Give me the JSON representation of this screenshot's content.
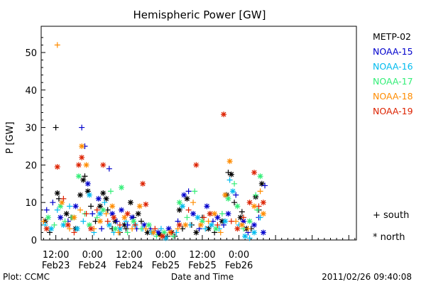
{
  "chart_data": {
    "type": "scatter",
    "title": "Hemispheric Power [GW]",
    "xlabel": "Date and Time",
    "ylabel": "P [GW]",
    "x_units": "hours since 2011-02-23 00:00",
    "xlim": [
      7.2,
      110.5
    ],
    "ylim": [
      0,
      57
    ],
    "yticks": [
      0,
      10,
      20,
      30,
      40,
      50
    ],
    "xticks": [
      {
        "x": 12,
        "time": "12:00",
        "date": "Feb23"
      },
      {
        "x": 24,
        "time": "0:00",
        "date": "Feb24"
      },
      {
        "x": 36,
        "time": "12:00",
        "date": "Feb24"
      },
      {
        "x": 48,
        "time": "0:00",
        "date": "Feb25"
      },
      {
        "x": 60,
        "time": "12:00",
        "date": "Feb25"
      },
      {
        "x": 72,
        "time": "0:00",
        "date": "Feb26"
      }
    ],
    "marker_legend": [
      {
        "symbol": "+",
        "label": "south"
      },
      {
        "symbol": "*",
        "label": "north"
      }
    ],
    "series": [
      {
        "name": "METP-02",
        "color": "#000000",
        "points": [
          [
            12.0,
            30,
            "+"
          ],
          [
            12.5,
            12.5,
            "*"
          ],
          [
            13.0,
            11,
            "+"
          ],
          [
            15.5,
            7,
            "*"
          ],
          [
            17.0,
            6,
            "+"
          ],
          [
            20.0,
            12,
            "*"
          ],
          [
            21.0,
            16,
            "*"
          ],
          [
            21.5,
            17,
            "+"
          ],
          [
            22.5,
            13,
            "*"
          ],
          [
            23.5,
            9,
            "+"
          ],
          [
            25.0,
            5,
            "+"
          ],
          [
            26.5,
            9,
            "*"
          ],
          [
            27.5,
            12.5,
            "*"
          ],
          [
            28.5,
            11,
            "*"
          ],
          [
            29.0,
            8,
            "+"
          ],
          [
            30.5,
            3,
            "+"
          ],
          [
            31.5,
            5,
            "*"
          ],
          [
            33.0,
            2,
            "+"
          ],
          [
            34.5,
            4,
            "*"
          ],
          [
            35.0,
            3,
            "+"
          ],
          [
            36.5,
            10,
            "*"
          ],
          [
            37.5,
            6,
            "+"
          ],
          [
            39.0,
            7,
            "*"
          ],
          [
            40.0,
            5,
            "+"
          ],
          [
            42.0,
            2,
            "*"
          ],
          [
            44.0,
            2,
            "+"
          ],
          [
            46.0,
            1.5,
            "*"
          ],
          [
            48.5,
            1,
            "+"
          ],
          [
            50.0,
            2,
            "*"
          ],
          [
            51.0,
            1,
            "+"
          ],
          [
            52.5,
            8,
            "*"
          ],
          [
            53.5,
            3,
            "+"
          ],
          [
            55.0,
            11,
            "*"
          ],
          [
            56.5,
            4,
            "+"
          ],
          [
            58.0,
            2,
            "*"
          ],
          [
            60.0,
            6,
            "+"
          ],
          [
            62.0,
            3,
            "*"
          ],
          [
            64.0,
            2,
            "+"
          ],
          [
            66.5,
            5,
            "*"
          ],
          [
            68.0,
            12,
            "*"
          ],
          [
            68.5,
            18,
            "+"
          ],
          [
            69.5,
            17.5,
            "*"
          ],
          [
            70.5,
            10,
            "+"
          ],
          [
            72.5,
            6,
            "*"
          ],
          [
            73.0,
            7.5,
            "+"
          ],
          [
            74.5,
            3,
            "*"
          ],
          [
            76.0,
            3,
            "+"
          ],
          [
            77.5,
            11.5,
            "*"
          ],
          [
            78.5,
            8,
            "+"
          ],
          [
            79.5,
            15,
            "*"
          ],
          [
            8.5,
            5,
            "*"
          ],
          [
            10.0,
            2,
            "+"
          ],
          [
            18.5,
            3,
            "*"
          ]
        ]
      },
      {
        "name": "NOAA-15",
        "color": "#0000cc",
        "points": [
          [
            9.0,
            8,
            "+"
          ],
          [
            11.0,
            10,
            "+"
          ],
          [
            13.5,
            6,
            "*"
          ],
          [
            16.0,
            5,
            "+"
          ],
          [
            18.5,
            9,
            "*"
          ],
          [
            20.5,
            30,
            "+"
          ],
          [
            21.5,
            25,
            "+"
          ],
          [
            22.5,
            15,
            "*"
          ],
          [
            24.0,
            7,
            "+"
          ],
          [
            26.0,
            11,
            "*"
          ],
          [
            27.0,
            3,
            "+"
          ],
          [
            29.5,
            19,
            "+"
          ],
          [
            30.5,
            7,
            "*"
          ],
          [
            32.0,
            5,
            "+"
          ],
          [
            33.5,
            8,
            "*"
          ],
          [
            35.5,
            4,
            "+"
          ],
          [
            37.0,
            6,
            "*"
          ],
          [
            38.5,
            3,
            "+"
          ],
          [
            41.0,
            4,
            "*"
          ],
          [
            43.0,
            3,
            "+"
          ],
          [
            45.5,
            2,
            "*"
          ],
          [
            47.0,
            1,
            "+"
          ],
          [
            49.0,
            3,
            "*"
          ],
          [
            52.0,
            5,
            "+"
          ],
          [
            54.0,
            12,
            "*"
          ],
          [
            55.5,
            13,
            "+"
          ],
          [
            57.0,
            7,
            "*"
          ],
          [
            59.0,
            3,
            "+"
          ],
          [
            61.5,
            9,
            "*"
          ],
          [
            63.5,
            5,
            "+"
          ],
          [
            65.0,
            6,
            "*"
          ],
          [
            67.0,
            4,
            "+"
          ],
          [
            68.5,
            7,
            "*"
          ],
          [
            71.0,
            12,
            "+"
          ],
          [
            73.5,
            5,
            "*"
          ],
          [
            75.0,
            2,
            "+"
          ],
          [
            77.0,
            4,
            "*"
          ],
          [
            78.5,
            6,
            "+"
          ],
          [
            80.5,
            14.5,
            "+"
          ],
          [
            80.0,
            2,
            "*"
          ]
        ]
      },
      {
        "name": "NOAA-16",
        "color": "#00bbee",
        "points": [
          [
            8.5,
            4,
            "+"
          ],
          [
            10.5,
            3,
            "*"
          ],
          [
            12.5,
            8,
            "+"
          ],
          [
            14.5,
            4,
            "*"
          ],
          [
            16.5,
            9,
            "+"
          ],
          [
            19.0,
            3,
            "*"
          ],
          [
            21.0,
            5,
            "+"
          ],
          [
            23.0,
            12,
            "*"
          ],
          [
            24.5,
            2,
            "+"
          ],
          [
            26.5,
            7,
            "*"
          ],
          [
            28.0,
            10,
            "+"
          ],
          [
            29.5,
            4,
            "*"
          ],
          [
            31.0,
            2,
            "+"
          ],
          [
            33.0,
            3,
            "*"
          ],
          [
            35.0,
            5,
            "+"
          ],
          [
            38.0,
            4,
            "*"
          ],
          [
            40.5,
            3,
            "+"
          ],
          [
            43.5,
            2,
            "*"
          ],
          [
            46.5,
            3,
            "+"
          ],
          [
            48.0,
            0.5,
            "*"
          ],
          [
            51.5,
            2,
            "+"
          ],
          [
            53.5,
            9,
            "*"
          ],
          [
            56.0,
            4,
            "+"
          ],
          [
            58.5,
            6,
            "*"
          ],
          [
            61.0,
            3,
            "+"
          ],
          [
            63.0,
            4,
            "*"
          ],
          [
            65.5,
            3,
            "+"
          ],
          [
            67.5,
            5,
            "*"
          ],
          [
            69.0,
            16,
            "+"
          ],
          [
            70.0,
            13,
            "*"
          ],
          [
            72.0,
            4,
            "+"
          ],
          [
            74.0,
            1,
            "*"
          ],
          [
            75.5,
            0.5,
            "+"
          ],
          [
            77.0,
            2,
            "*"
          ],
          [
            79.0,
            6,
            "+"
          ]
        ]
      },
      {
        "name": "NOAA-17",
        "color": "#33ee77",
        "points": [
          [
            9.5,
            6,
            "*"
          ],
          [
            11.5,
            4,
            "+"
          ],
          [
            13.5,
            9,
            "*"
          ],
          [
            15.0,
            5,
            "+"
          ],
          [
            17.5,
            6,
            "*"
          ],
          [
            19.5,
            17,
            "*"
          ],
          [
            21.5,
            7,
            "+"
          ],
          [
            23.0,
            4,
            "*"
          ],
          [
            25.5,
            6,
            "+"
          ],
          [
            27.5,
            8,
            "*"
          ],
          [
            30.0,
            13,
            "+"
          ],
          [
            31.5,
            3,
            "*"
          ],
          [
            33.5,
            14,
            "*"
          ],
          [
            35.5,
            2,
            "+"
          ],
          [
            37.5,
            5,
            "*"
          ],
          [
            40.0,
            3,
            "+"
          ],
          [
            42.5,
            4,
            "*"
          ],
          [
            45.0,
            1,
            "+"
          ],
          [
            47.5,
            2,
            "*"
          ],
          [
            50.5,
            1,
            "+"
          ],
          [
            52.5,
            10,
            "*"
          ],
          [
            55.0,
            6,
            "+"
          ],
          [
            57.5,
            13,
            "+"
          ],
          [
            60.0,
            5,
            "*"
          ],
          [
            62.5,
            7,
            "+"
          ],
          [
            64.5,
            3,
            "*"
          ],
          [
            66.5,
            7,
            "+"
          ],
          [
            68.5,
            11,
            "*"
          ],
          [
            70.5,
            15,
            "+"
          ],
          [
            71.5,
            9,
            "*"
          ],
          [
            73.5,
            3,
            "+"
          ],
          [
            75.5,
            5,
            "*"
          ],
          [
            77.5,
            12,
            "+"
          ],
          [
            79.0,
            17,
            "*"
          ],
          [
            78.0,
            8,
            "+"
          ]
        ]
      },
      {
        "name": "NOAA-18",
        "color": "#ff8c00",
        "points": [
          [
            8.0,
            5,
            "+"
          ],
          [
            12.5,
            52,
            "+"
          ],
          [
            14.0,
            10,
            "*"
          ],
          [
            16.5,
            3,
            "+"
          ],
          [
            18.0,
            6,
            "*"
          ],
          [
            20.0,
            8,
            "+"
          ],
          [
            20.5,
            25,
            "*"
          ],
          [
            22.0,
            20,
            "*"
          ],
          [
            24.5,
            3,
            "+"
          ],
          [
            26.5,
            5,
            "*"
          ],
          [
            28.5,
            7,
            "+"
          ],
          [
            30.5,
            9,
            "*"
          ],
          [
            32.5,
            2,
            "+"
          ],
          [
            34.5,
            6,
            "*"
          ],
          [
            37.0,
            3,
            "+"
          ],
          [
            39.5,
            9,
            "*"
          ],
          [
            41.5,
            3,
            "+"
          ],
          [
            44.0,
            2,
            "*"
          ],
          [
            46.5,
            1,
            "+"
          ],
          [
            49.5,
            2,
            "*"
          ],
          [
            52.0,
            3,
            "+"
          ],
          [
            54.5,
            4,
            "*"
          ],
          [
            57.0,
            10,
            "+"
          ],
          [
            59.5,
            4,
            "*"
          ],
          [
            62.0,
            5,
            "+"
          ],
          [
            64.0,
            7,
            "*"
          ],
          [
            66.0,
            2,
            "+"
          ],
          [
            67.5,
            12,
            "*"
          ],
          [
            69.0,
            21,
            "*"
          ],
          [
            71.0,
            5,
            "+"
          ],
          [
            73.0,
            4,
            "*"
          ],
          [
            75.0,
            3,
            "+"
          ],
          [
            77.0,
            9,
            "*"
          ],
          [
            79.0,
            13,
            "+"
          ],
          [
            80.0,
            7,
            "*"
          ]
        ]
      },
      {
        "name": "NOAA-19",
        "color": "#dd2200",
        "points": [
          [
            9.0,
            3,
            "*"
          ],
          [
            12.5,
            19.5,
            "*"
          ],
          [
            14.5,
            11,
            "+"
          ],
          [
            16.0,
            4,
            "*"
          ],
          [
            18.0,
            2,
            "+"
          ],
          [
            19.5,
            20,
            "*"
          ],
          [
            20.5,
            22,
            "*"
          ],
          [
            22.0,
            7,
            "+"
          ],
          [
            23.5,
            3,
            "*"
          ],
          [
            25.5,
            8,
            "+"
          ],
          [
            27.5,
            20,
            "*"
          ],
          [
            29.0,
            5,
            "+"
          ],
          [
            31.0,
            6,
            "*"
          ],
          [
            33.0,
            4,
            "+"
          ],
          [
            35.5,
            7,
            "*"
          ],
          [
            38.0,
            4,
            "+"
          ],
          [
            40.5,
            15,
            "*"
          ],
          [
            41.5,
            9.5,
            "*"
          ],
          [
            44.5,
            3,
            "+"
          ],
          [
            47.0,
            1,
            "*"
          ],
          [
            50.0,
            2,
            "+"
          ],
          [
            52.5,
            4,
            "*"
          ],
          [
            55.5,
            8,
            "+"
          ],
          [
            58.0,
            20,
            "*"
          ],
          [
            60.5,
            6,
            "+"
          ],
          [
            62.5,
            7,
            "*"
          ],
          [
            65.0,
            4,
            "+"
          ],
          [
            67.0,
            33.5,
            "*"
          ],
          [
            69.5,
            5,
            "+"
          ],
          [
            71.5,
            3,
            "*"
          ],
          [
            73.5,
            6,
            "+"
          ],
          [
            75.5,
            10,
            "*"
          ],
          [
            77.0,
            18,
            "*"
          ],
          [
            78.5,
            9,
            "+"
          ],
          [
            80.0,
            10,
            "*"
          ]
        ]
      }
    ]
  },
  "footer": {
    "left": "Plot: CCMC",
    "center": "Date and Time",
    "right": "2011/02/26 09:40:08"
  }
}
